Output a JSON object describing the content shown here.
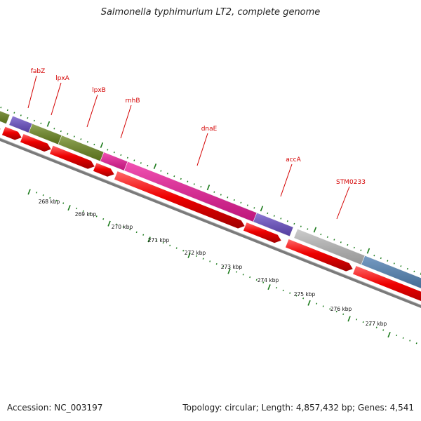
{
  "title": "Salmonella typhimurium LT2, complete genome",
  "footer": {
    "accession": "Accession: NC_003197",
    "summary": "Topology: circular; Length: 4,857,432 bp; Genes: 4,541"
  },
  "colors": {
    "gene_label": "#d40000",
    "strand_arrow": "#ee0000",
    "backbone": "#7a7a7a",
    "tick": "#1a7a1a",
    "olive": "#6e8a22",
    "purple": "#6a4fc8",
    "magenta": "#ee1a9a",
    "gray": "#bcbcbc",
    "steel_blue": "#4a7cb0"
  },
  "gene_labels": [
    "fabZ",
    "lpxA",
    "lpxB",
    "rnhB",
    "dnaE",
    "accA",
    "STM0233"
  ],
  "kbp_ticks": [
    "268 kbp",
    "269 kbp",
    "270 kbp",
    "271 kbp",
    "272 kbp",
    "273 kbp",
    "274 kbp",
    "275 kbp",
    "276 kbp",
    "277 kbp"
  ],
  "cog_blocks": [
    "olive",
    "purple",
    "olive",
    "olive",
    "magenta",
    "magenta",
    "purple",
    "gray",
    "steel_blue"
  ]
}
